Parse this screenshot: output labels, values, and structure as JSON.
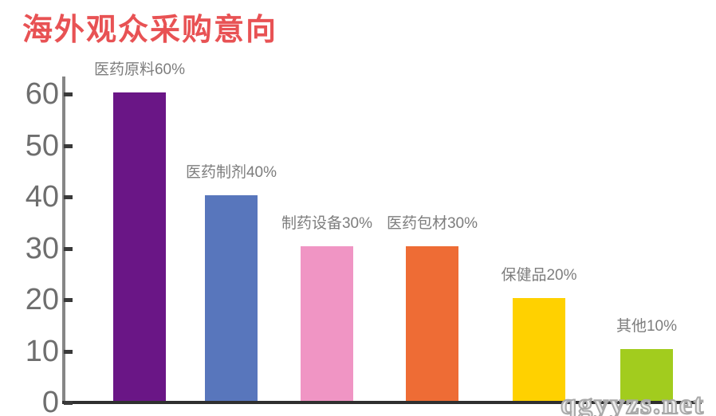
{
  "title": "海外观众采购意向",
  "title_color": "#E85254",
  "watermark": "qgyyzs.net",
  "chart_data": {
    "type": "bar",
    "title": "海外观众采购意向",
    "categories": [
      "医药原料",
      "医药制剂",
      "制药设备",
      "医药包材",
      "保健品",
      "其他"
    ],
    "values": [
      60,
      40,
      30,
      30,
      20,
      10
    ],
    "labels": [
      "医药原料60%",
      "医药制剂40%",
      "制药设备30%",
      "医药包材30%",
      "保健品20%",
      "其他10%"
    ],
    "colors": [
      "#6A1686",
      "#5876BC",
      "#F095C4",
      "#EE6C35",
      "#FFD100",
      "#A2CC1E"
    ],
    "y_ticks": [
      60,
      50,
      40,
      30,
      20,
      10,
      0
    ],
    "ylim": [
      0,
      60
    ],
    "xlabel": "",
    "ylabel": "",
    "grid": false,
    "legend": "none",
    "axis_color": "#868686",
    "baseline_color": "#2f2f2f",
    "label_color": "#7d7d7d"
  }
}
